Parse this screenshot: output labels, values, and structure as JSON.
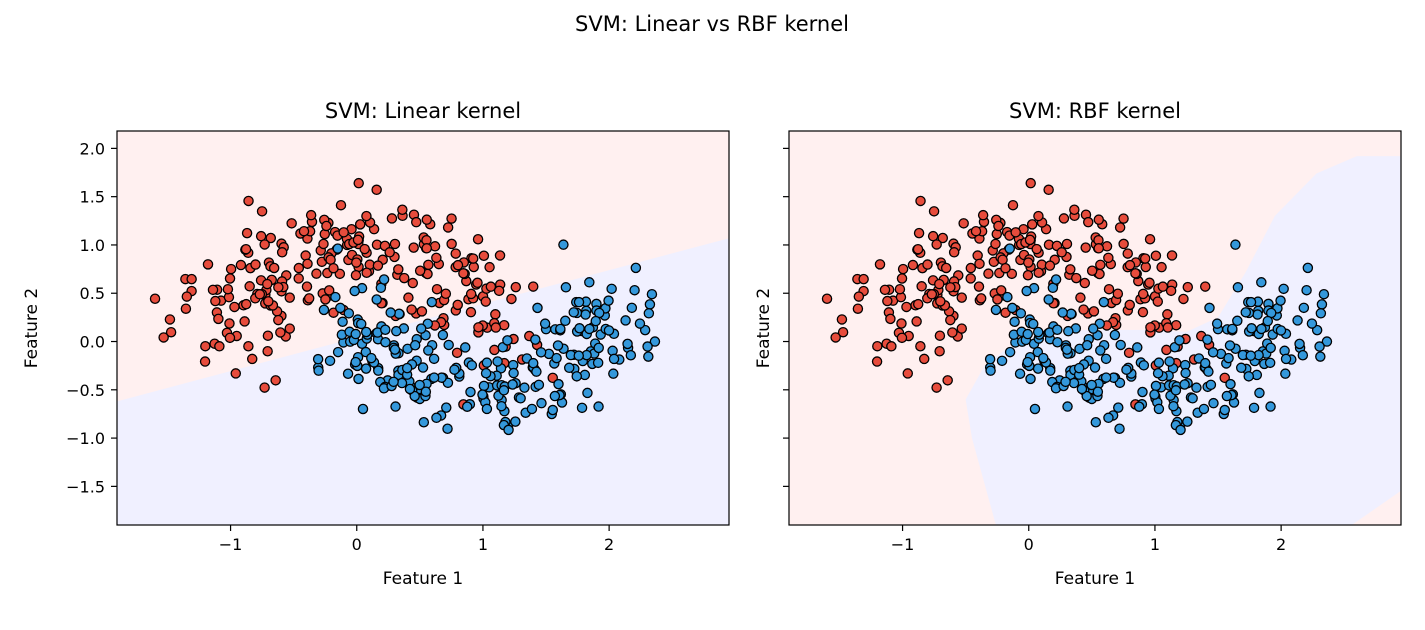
{
  "suptitle": "SVM: Linear vs RBF kernel",
  "colors": {
    "class0": "#e74c3c",
    "class1": "#3498db",
    "region0": "#fff0f0",
    "region1": "#f0f0ff",
    "edge": "#000000"
  },
  "chart_data": [
    {
      "type": "scatter",
      "title": "SVM: Linear kernel",
      "xlabel": "Feature 1",
      "ylabel": "Feature 2",
      "xlim": [
        -1.9,
        2.95
      ],
      "ylim": [
        -1.9,
        2.18
      ],
      "xticks": [
        -1,
        0,
        1,
        2
      ],
      "xtick_labels": [
        "−1",
        "0",
        "1",
        "2"
      ],
      "yticks": [
        -1.5,
        -1.0,
        -0.5,
        0.0,
        0.5,
        1.0,
        1.5,
        2.0
      ],
      "ytick_labels": [
        "−1.5",
        "−1.0",
        "−0.5",
        "0.0",
        "0.5",
        "1.0",
        "1.5",
        "2.0"
      ],
      "show_yticklabels": true,
      "grid": false,
      "decision_boundary": "linear",
      "series": [
        {
          "class": 0,
          "color": "#e74c3c",
          "count": 250
        },
        {
          "class": 1,
          "color": "#3498db",
          "count": 250
        }
      ]
    },
    {
      "type": "scatter",
      "title": "SVM: RBF kernel",
      "xlabel": "Feature 1",
      "ylabel": "Feature 2",
      "xlim": [
        -1.9,
        2.95
      ],
      "ylim": [
        -1.9,
        2.18
      ],
      "xticks": [
        -1,
        0,
        1,
        2
      ],
      "xtick_labels": [
        "−1",
        "0",
        "1",
        "2"
      ],
      "yticks": [
        -1.5,
        -1.0,
        -0.5,
        0.0,
        0.5,
        1.0,
        1.5,
        2.0
      ],
      "ytick_labels": [
        "",
        "",
        "",
        "",
        "",
        "",
        "",
        ""
      ],
      "show_yticklabels": false,
      "grid": false,
      "decision_boundary": "rbf",
      "series": [
        {
          "class": 0,
          "color": "#e74c3c",
          "count": 250
        },
        {
          "class": 1,
          "color": "#3498db",
          "count": 250
        }
      ]
    }
  ]
}
